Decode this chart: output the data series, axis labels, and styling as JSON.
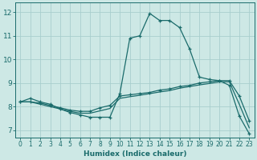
{
  "xlabel": "Humidex (Indice chaleur)",
  "bg_color": "#cde8e5",
  "grid_color": "#a8cece",
  "line_color": "#1a6b6b",
  "xlim": [
    -0.5,
    23.5
  ],
  "ylim": [
    6.7,
    12.4
  ],
  "xticks": [
    0,
    1,
    2,
    3,
    4,
    5,
    6,
    7,
    8,
    9,
    10,
    11,
    12,
    13,
    14,
    15,
    16,
    17,
    18,
    19,
    20,
    21,
    22,
    23
  ],
  "yticks": [
    7,
    8,
    9,
    10,
    11,
    12
  ],
  "series1_x": [
    0,
    1,
    2,
    3,
    4,
    5,
    6,
    7,
    8,
    9,
    10,
    11,
    12,
    13,
    14,
    15,
    16,
    17,
    18,
    19,
    20,
    21,
    22,
    23
  ],
  "series1_y": [
    8.2,
    8.35,
    8.2,
    8.1,
    7.9,
    7.75,
    7.65,
    7.55,
    7.55,
    7.55,
    8.55,
    10.9,
    11.0,
    11.95,
    11.65,
    11.65,
    11.35,
    10.45,
    9.25,
    9.15,
    9.1,
    8.9,
    7.6,
    6.85
  ],
  "series2_x": [
    0,
    1,
    2,
    3,
    4,
    5,
    6,
    7,
    8,
    9,
    10,
    11,
    12,
    13,
    14,
    15,
    16,
    17,
    18,
    19,
    20,
    21,
    22,
    23
  ],
  "series2_y": [
    8.2,
    8.2,
    8.15,
    8.05,
    7.95,
    7.85,
    7.8,
    7.8,
    7.95,
    8.05,
    8.45,
    8.5,
    8.55,
    8.6,
    8.7,
    8.75,
    8.85,
    8.9,
    9.0,
    9.05,
    9.1,
    9.1,
    8.45,
    7.4
  ],
  "series3_x": [
    0,
    1,
    2,
    3,
    4,
    5,
    6,
    7,
    8,
    9,
    10,
    11,
    12,
    13,
    14,
    15,
    16,
    17,
    18,
    19,
    20,
    21,
    22,
    23
  ],
  "series3_y": [
    8.2,
    8.2,
    8.1,
    8.0,
    7.9,
    7.8,
    7.72,
    7.72,
    7.82,
    7.92,
    8.35,
    8.42,
    8.48,
    8.55,
    8.62,
    8.68,
    8.78,
    8.85,
    8.92,
    8.98,
    9.05,
    9.05,
    8.1,
    7.1
  ]
}
